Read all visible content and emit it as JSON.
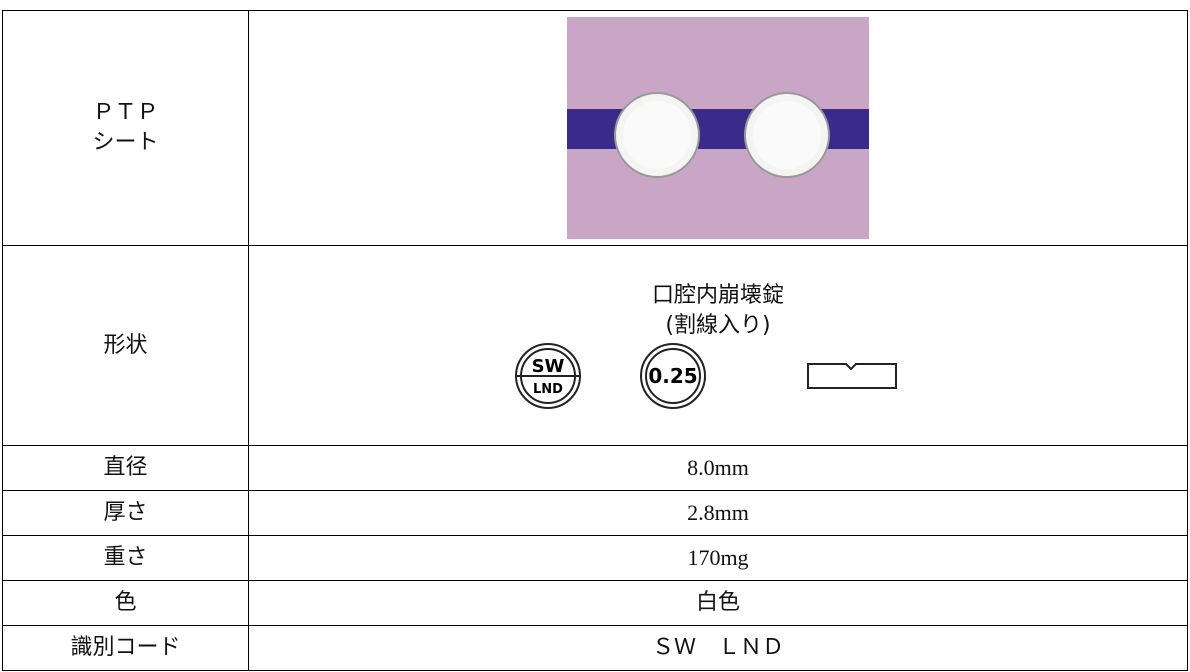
{
  "table": {
    "rows": [
      {
        "label": [
          "ＰＴＰ",
          "シート"
        ]
      },
      {
        "label": [
          "形状"
        ],
        "value": [
          "口腔内崩壊錠",
          "(割線入り)"
        ],
        "marks": {
          "front": [
            "SW",
            "LND"
          ],
          "back": "0.25"
        }
      },
      {
        "label": [
          "直径"
        ],
        "value": [
          "8.0mm"
        ]
      },
      {
        "label": [
          "厚さ"
        ],
        "value": [
          "2.8mm"
        ]
      },
      {
        "label": [
          "重さ"
        ],
        "value": [
          "170mg"
        ]
      },
      {
        "label": [
          "色"
        ],
        "value": [
          "白色"
        ]
      },
      {
        "label": [
          "識別コード"
        ],
        "value": [
          "ＳＷ　ＬＮＤ"
        ]
      }
    ]
  }
}
